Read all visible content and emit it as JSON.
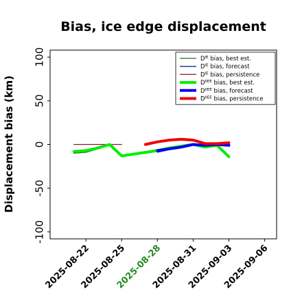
{
  "chart_data": {
    "type": "line",
    "title": "Bias, ice edge displacement",
    "xlabel": "",
    "ylabel": "Displacement bias (km)",
    "xlim": [
      "2025-08-19",
      "2025-09-07"
    ],
    "ylim": [
      -108,
      108
    ],
    "yticks": [
      100,
      50,
      0,
      -50,
      -100
    ],
    "xticks": [
      "2025-08-22",
      "2025-08-25",
      "2025-08-28",
      "2025-08-31",
      "2025-09-03",
      "2025-09-06"
    ],
    "highlight_tick": "2025-08-28",
    "highlight_color": "#228B22",
    "grid": false,
    "legend_position": "top-right",
    "series": [
      {
        "name": "D^IE bias, best est.",
        "legend_main": "D",
        "legend_sup": "IE",
        "legend_rest": " bias, best est.",
        "color": "#1a7a1a",
        "width": 1.3,
        "x": [
          "2025-08-21",
          "2025-08-22",
          "2025-08-23",
          "2025-08-24",
          "2025-08-25"
        ],
        "y": [
          -10,
          -9,
          -5,
          -1,
          -13
        ]
      },
      {
        "name": "D^IE bias, forecast",
        "legend_main": "D",
        "legend_sup": "IE",
        "legend_rest": " bias, forecast",
        "color": "#1a2a9a",
        "width": 1.3,
        "x": [
          "2025-08-28",
          "2025-08-29",
          "2025-08-30",
          "2025-08-31",
          "2025-09-01",
          "2025-09-02",
          "2025-09-03"
        ],
        "y": [
          -9,
          -6,
          -3,
          0,
          -1,
          0,
          -1
        ]
      },
      {
        "name": "D^IE bias, persistence",
        "legend_main": "D",
        "legend_sup": "IE",
        "legend_rest": " bias, persistence",
        "color": "#8a1a2a",
        "width": 1.3,
        "x": [
          "2025-08-21",
          "2025-08-25"
        ],
        "y": [
          0,
          0
        ]
      },
      {
        "name": "D^IIEE bias, best est.",
        "legend_main": "D",
        "legend_sup": "IIEE",
        "legend_rest": " bias, best est.",
        "color": "#00ee00",
        "width": 4,
        "x": [
          "2025-08-21",
          "2025-08-22",
          "2025-08-23",
          "2025-08-24",
          "2025-08-25",
          "2025-08-26",
          "2025-08-27",
          "2025-08-28",
          "2025-08-29",
          "2025-08-30",
          "2025-08-31",
          "2025-09-01",
          "2025-09-02",
          "2025-09-03"
        ],
        "y": [
          -8,
          -7,
          -4,
          0,
          -13,
          -11,
          -9,
          -7,
          -4,
          -2,
          0,
          -3,
          -1,
          -14
        ]
      },
      {
        "name": "D^IIEE bias, forecast",
        "legend_main": "D",
        "legend_sup": "IIEE",
        "legend_rest": " bias, forecast",
        "color": "#0000ee",
        "width": 4,
        "x": [
          "2025-08-28",
          "2025-08-29",
          "2025-08-30",
          "2025-08-31",
          "2025-09-01",
          "2025-09-02",
          "2025-09-03"
        ],
        "y": [
          -7,
          -5,
          -3,
          0,
          -1,
          0,
          -1
        ]
      },
      {
        "name": "D^IIEE bias, persistence",
        "legend_main": "D",
        "legend_sup": "IIEE",
        "legend_rest": " bias, persistence",
        "color": "#ee0000",
        "width": 4,
        "x": [
          "2025-08-27",
          "2025-08-28",
          "2025-08-29",
          "2025-08-30",
          "2025-08-31",
          "2025-09-01",
          "2025-09-02",
          "2025-09-03"
        ],
        "y": [
          0,
          3,
          5,
          6,
          5,
          1,
          1,
          2
        ]
      }
    ]
  }
}
